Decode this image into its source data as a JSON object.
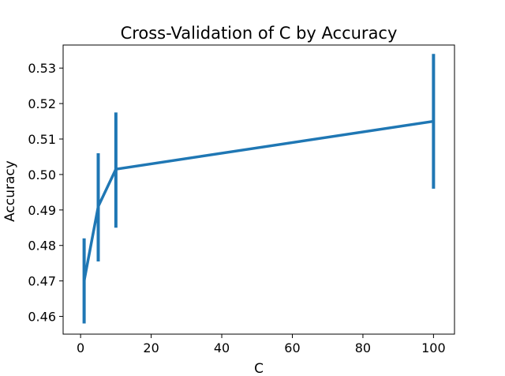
{
  "chart_data": {
    "type": "line",
    "title": "Cross-Validation of C by Accuracy",
    "xlabel": "C",
    "ylabel": "Accuracy",
    "xlim": [
      -4.95,
      105.95
    ],
    "ylim": [
      0.455,
      0.5365
    ],
    "xticks": [
      0,
      20,
      40,
      60,
      80,
      100
    ],
    "yticks": [
      0.46,
      0.47,
      0.48,
      0.49,
      0.5,
      0.51,
      0.52,
      0.53
    ],
    "ytick_labels": [
      "0.46",
      "0.47",
      "0.48",
      "0.49",
      "0.50",
      "0.51",
      "0.52",
      "0.53"
    ],
    "grid": false,
    "legend": "none",
    "series": [
      {
        "color": "#1f77b4",
        "x": [
          1,
          5,
          10,
          100
        ],
        "y": [
          0.47,
          0.491,
          0.5015,
          0.515
        ],
        "err_low": [
          0.458,
          0.4755,
          0.485,
          0.496
        ],
        "err_high": [
          0.482,
          0.506,
          0.5175,
          0.534
        ]
      }
    ]
  }
}
